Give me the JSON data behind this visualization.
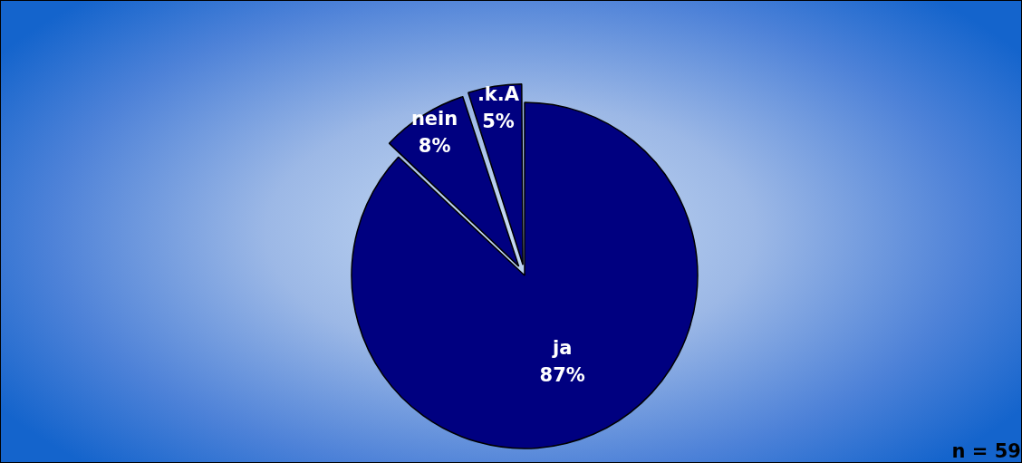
{
  "chart_data": {
    "type": "pie",
    "categories": [
      "ja",
      "nein",
      ".k.A"
    ],
    "values": [
      87,
      8,
      5
    ],
    "value_labels": [
      "87%",
      "8%",
      "5%"
    ],
    "colors": [
      "#000080",
      "#000080",
      "#000080"
    ],
    "legend": false,
    "annotations": [
      "n = 59"
    ]
  }
}
